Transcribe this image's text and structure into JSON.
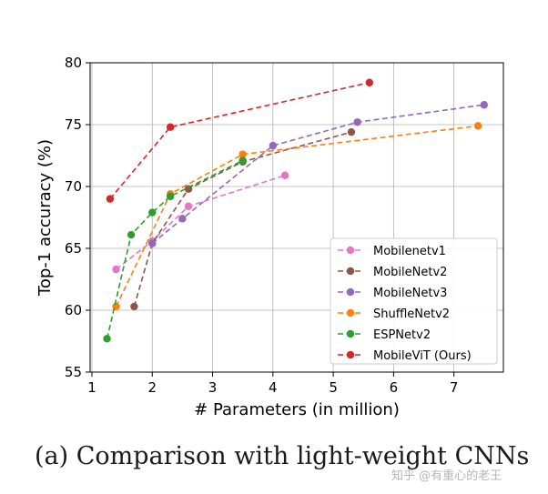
{
  "chart_data": {
    "type": "line",
    "title": "",
    "xlabel": "# Parameters (in million)",
    "ylabel": "Top-1 accuracy (%)",
    "xlim": [
      0.97,
      7.82
    ],
    "ylim": [
      55,
      80
    ],
    "xticks": [
      1,
      2,
      3,
      4,
      5,
      6,
      7
    ],
    "yticks": [
      55,
      60,
      65,
      70,
      75,
      80
    ],
    "grid": true,
    "legend_position": "lower-right",
    "series": [
      {
        "name": "Mobilenetv1",
        "color": "#e377c2",
        "x": [
          1.4,
          2.0,
          2.6,
          4.2
        ],
        "y": [
          63.3,
          65.6,
          68.4,
          70.9
        ]
      },
      {
        "name": "MobileNetv2",
        "color": "#8c564b",
        "x": [
          1.7,
          2.0,
          2.6,
          3.5,
          5.3
        ],
        "y": [
          60.3,
          65.4,
          69.8,
          72.0,
          74.4
        ]
      },
      {
        "name": "MobileNetv3",
        "color": "#9467bd",
        "x": [
          2.0,
          2.5,
          4.0,
          5.4,
          7.5
        ],
        "y": [
          65.4,
          67.4,
          73.3,
          75.2,
          76.6
        ]
      },
      {
        "name": "ShuffleNetv2",
        "color": "#ff7f0e",
        "x": [
          1.4,
          2.3,
          3.5,
          7.4
        ],
        "y": [
          60.3,
          69.4,
          72.6,
          74.9
        ]
      },
      {
        "name": "ESPNetv2",
        "color": "#2ca02c",
        "x": [
          1.25,
          1.65,
          2.0,
          2.3,
          3.5
        ],
        "y": [
          57.7,
          66.1,
          67.9,
          69.2,
          72.1
        ]
      },
      {
        "name": "MobileViT (Ours)",
        "color": "#d62728",
        "x": [
          1.3,
          2.3,
          5.6
        ],
        "y": [
          69.0,
          74.8,
          78.4
        ]
      }
    ]
  },
  "caption": "(a) Comparison with light-weight CNNs",
  "watermark": "知乎 @有重心的老王"
}
